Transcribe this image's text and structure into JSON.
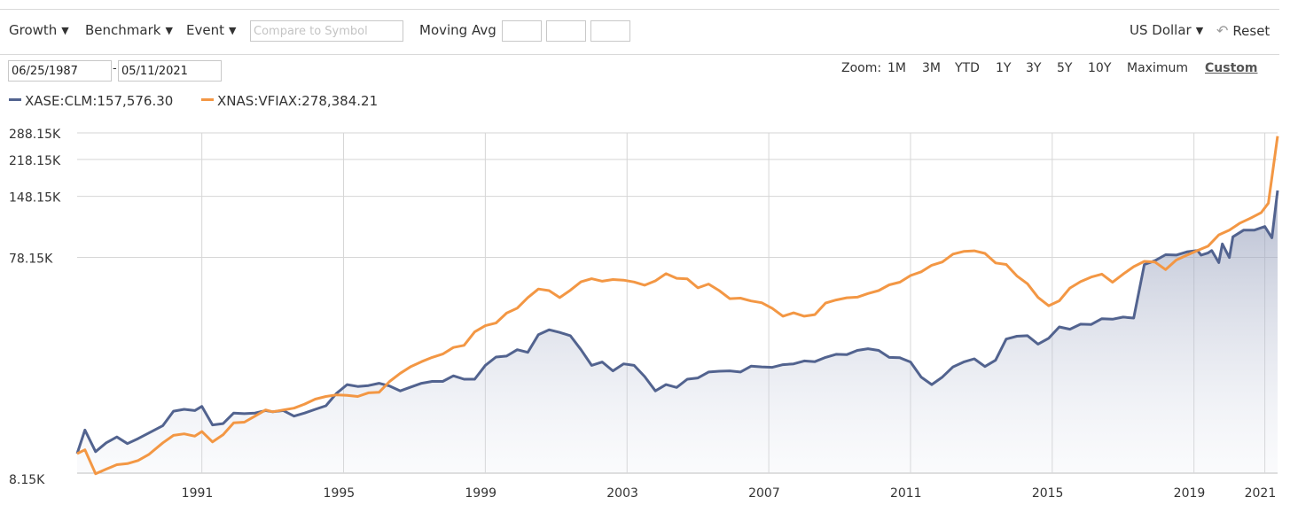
{
  "toolbar": {
    "growth_label": "Growth",
    "benchmark_label": "Benchmark",
    "event_label": "Event",
    "compare_placeholder": "Compare to Symbol",
    "moving_avg_label": "Moving Avg",
    "currency_label": "US Dollar",
    "reset_label": "Reset"
  },
  "date_range": {
    "start": "06/25/1987",
    "separator": "-",
    "end": "05/11/2021"
  },
  "zoom": {
    "label": "Zoom:",
    "options": [
      "1M",
      "3M",
      "YTD",
      "1Y",
      "3Y",
      "5Y",
      "10Y",
      "Maximum",
      "Custom"
    ],
    "active": "Custom"
  },
  "legend": [
    {
      "label": "XASE:CLM:157,576.30",
      "color": "#52638f"
    },
    {
      "label": "XNAS:VFIAX:278,384.21",
      "color": "#f39744"
    }
  ],
  "chart_data": {
    "type": "line",
    "y_scale": "log",
    "yticks": [
      8150,
      78150,
      148150,
      218150,
      288150
    ],
    "ytick_labels": [
      "8.15K",
      "78.15K",
      "148.15K",
      "218.15K",
      "288.15K"
    ],
    "xticks": [
      1991,
      1995,
      1999,
      2003,
      2007,
      2011,
      2015,
      2019,
      2021
    ],
    "xlim": [
      1987.48,
      2021.36
    ],
    "grid": true,
    "series": [
      {
        "name": "XASE:CLM",
        "color": "#52638f",
        "fill": true,
        "points": [
          [
            1987.48,
            10000
          ],
          [
            1987.7,
            12800
          ],
          [
            1988.0,
            10200
          ],
          [
            1988.3,
            11200
          ],
          [
            1988.6,
            11900
          ],
          [
            1988.9,
            11100
          ],
          [
            1989.2,
            11700
          ],
          [
            1989.5,
            12400
          ],
          [
            1989.9,
            13400
          ],
          [
            1990.2,
            15600
          ],
          [
            1990.5,
            15900
          ],
          [
            1990.8,
            15700
          ],
          [
            1991.0,
            16400
          ],
          [
            1991.3,
            13500
          ],
          [
            1991.6,
            13700
          ],
          [
            1991.9,
            15300
          ],
          [
            1992.2,
            15200
          ],
          [
            1992.5,
            15300
          ],
          [
            1992.8,
            15700
          ],
          [
            1993.0,
            15500
          ],
          [
            1993.3,
            15700
          ],
          [
            1993.6,
            14800
          ],
          [
            1993.9,
            15300
          ],
          [
            1994.2,
            15900
          ],
          [
            1994.5,
            16500
          ],
          [
            1994.8,
            18800
          ],
          [
            1995.1,
            20600
          ],
          [
            1995.4,
            20200
          ],
          [
            1995.7,
            20400
          ],
          [
            1996.0,
            20900
          ],
          [
            1996.3,
            20300
          ],
          [
            1996.6,
            19300
          ],
          [
            1996.9,
            20100
          ],
          [
            1997.2,
            20900
          ],
          [
            1997.5,
            21300
          ],
          [
            1997.8,
            21300
          ],
          [
            1998.1,
            22600
          ],
          [
            1998.4,
            21800
          ],
          [
            1998.7,
            21800
          ],
          [
            1999.0,
            25200
          ],
          [
            1999.3,
            27500
          ],
          [
            1999.6,
            27800
          ],
          [
            1999.9,
            29700
          ],
          [
            2000.2,
            28900
          ],
          [
            2000.5,
            34800
          ],
          [
            2000.8,
            36600
          ],
          [
            2001.1,
            35600
          ],
          [
            2001.4,
            34400
          ],
          [
            2001.7,
            29700
          ],
          [
            2002.0,
            25200
          ],
          [
            2002.3,
            26100
          ],
          [
            2002.6,
            23800
          ],
          [
            2002.9,
            25600
          ],
          [
            2003.2,
            25200
          ],
          [
            2003.5,
            22400
          ],
          [
            2003.8,
            19300
          ],
          [
            2004.1,
            20600
          ],
          [
            2004.4,
            20000
          ],
          [
            2004.7,
            21800
          ],
          [
            2005.0,
            22100
          ],
          [
            2005.3,
            23500
          ],
          [
            2005.6,
            23700
          ],
          [
            2005.9,
            23800
          ],
          [
            2006.2,
            23500
          ],
          [
            2006.5,
            25000
          ],
          [
            2006.8,
            24800
          ],
          [
            2007.1,
            24700
          ],
          [
            2007.4,
            25400
          ],
          [
            2007.7,
            25600
          ],
          [
            2008.0,
            26400
          ],
          [
            2008.3,
            26200
          ],
          [
            2008.6,
            27400
          ],
          [
            2008.9,
            28300
          ],
          [
            2009.2,
            28200
          ],
          [
            2009.5,
            29500
          ],
          [
            2009.8,
            30000
          ],
          [
            2010.1,
            29500
          ],
          [
            2010.4,
            27400
          ],
          [
            2010.7,
            27300
          ],
          [
            2011.0,
            26100
          ],
          [
            2011.3,
            22300
          ],
          [
            2011.6,
            20600
          ],
          [
            2011.9,
            22300
          ],
          [
            2012.2,
            24800
          ],
          [
            2012.5,
            26100
          ],
          [
            2012.8,
            27000
          ],
          [
            2013.1,
            24900
          ],
          [
            2013.4,
            26600
          ],
          [
            2013.7,
            33200
          ],
          [
            2014.0,
            34200
          ],
          [
            2014.3,
            34400
          ],
          [
            2014.6,
            31500
          ],
          [
            2014.9,
            33500
          ],
          [
            2015.2,
            37700
          ],
          [
            2015.5,
            36800
          ],
          [
            2015.8,
            38800
          ],
          [
            2016.1,
            38700
          ],
          [
            2016.4,
            41100
          ],
          [
            2016.7,
            40900
          ],
          [
            2017.0,
            41800
          ],
          [
            2017.3,
            41400
          ],
          [
            2017.6,
            72500
          ],
          [
            2017.9,
            75500
          ],
          [
            2018.2,
            80400
          ],
          [
            2018.5,
            80100
          ],
          [
            2018.8,
            82800
          ],
          [
            2019.1,
            84000
          ],
          [
            2019.4,
            82000
          ],
          [
            2019.7,
            74000
          ],
          [
            2020.0,
            78000
          ],
          [
            2019.2,
            80000
          ],
          [
            2019.5,
            84000
          ],
          [
            2019.8,
            90000
          ],
          [
            2020.1,
            97000
          ],
          [
            2020.4,
            104000
          ],
          [
            2020.7,
            104000
          ],
          [
            2021.0,
            108000
          ],
          [
            2021.2,
            96000
          ],
          [
            2021.36,
            157576
          ]
        ]
      },
      {
        "name": "XNAS:VFIAX",
        "color": "#f39744",
        "fill": false,
        "points": [
          [
            1987.48,
            10000
          ],
          [
            1987.7,
            10400
          ],
          [
            1988.0,
            8100
          ],
          [
            1988.3,
            8500
          ],
          [
            1988.6,
            8900
          ],
          [
            1988.9,
            9000
          ],
          [
            1989.2,
            9300
          ],
          [
            1989.5,
            9900
          ],
          [
            1989.9,
            11200
          ],
          [
            1990.2,
            12100
          ],
          [
            1990.5,
            12300
          ],
          [
            1990.8,
            12000
          ],
          [
            1991.0,
            12600
          ],
          [
            1991.3,
            11300
          ],
          [
            1991.6,
            12200
          ],
          [
            1991.9,
            13800
          ],
          [
            1992.2,
            13900
          ],
          [
            1992.5,
            14800
          ],
          [
            1992.8,
            15800
          ],
          [
            1993.0,
            15500
          ],
          [
            1993.3,
            15800
          ],
          [
            1993.6,
            16100
          ],
          [
            1993.9,
            16800
          ],
          [
            1994.2,
            17700
          ],
          [
            1994.5,
            18200
          ],
          [
            1994.8,
            18500
          ],
          [
            1995.1,
            18400
          ],
          [
            1995.4,
            18200
          ],
          [
            1995.7,
            18900
          ],
          [
            1996.0,
            19000
          ],
          [
            1996.3,
            21300
          ],
          [
            1996.6,
            23200
          ],
          [
            1996.9,
            24900
          ],
          [
            1997.2,
            26200
          ],
          [
            1997.5,
            27400
          ],
          [
            1997.8,
            28400
          ],
          [
            1998.1,
            30400
          ],
          [
            1998.4,
            31100
          ],
          [
            1998.7,
            35800
          ],
          [
            1999.0,
            38200
          ],
          [
            1999.3,
            39300
          ],
          [
            1999.6,
            43600
          ],
          [
            1999.9,
            45900
          ],
          [
            2000.2,
            51300
          ],
          [
            2000.5,
            56100
          ],
          [
            2000.8,
            55200
          ],
          [
            2001.1,
            51300
          ],
          [
            2001.4,
            55400
          ],
          [
            2001.7,
            60500
          ],
          [
            2002.0,
            62500
          ],
          [
            2002.3,
            60900
          ],
          [
            2002.6,
            62000
          ],
          [
            2002.9,
            61600
          ],
          [
            2003.2,
            60400
          ],
          [
            2003.5,
            58400
          ],
          [
            2003.8,
            61100
          ],
          [
            2004.1,
            65900
          ],
          [
            2004.4,
            62800
          ],
          [
            2004.7,
            62400
          ],
          [
            2005.0,
            56800
          ],
          [
            2005.3,
            59100
          ],
          [
            2005.6,
            55200
          ],
          [
            2005.9,
            50700
          ],
          [
            2006.2,
            51000
          ],
          [
            2006.5,
            49500
          ],
          [
            2006.8,
            48600
          ],
          [
            2007.1,
            45800
          ],
          [
            2007.4,
            42200
          ],
          [
            2007.7,
            43700
          ],
          [
            2008.0,
            42200
          ],
          [
            2008.3,
            42900
          ],
          [
            2008.6,
            48400
          ],
          [
            2008.9,
            50000
          ],
          [
            2009.2,
            51200
          ],
          [
            2009.5,
            51500
          ],
          [
            2009.8,
            53500
          ],
          [
            2010.1,
            55200
          ],
          [
            2010.4,
            58600
          ],
          [
            2010.7,
            60300
          ],
          [
            2011.0,
            64600
          ],
          [
            2011.3,
            67200
          ],
          [
            2011.6,
            72000
          ],
          [
            2011.9,
            74500
          ],
          [
            2012.2,
            80900
          ],
          [
            2012.5,
            83200
          ],
          [
            2012.8,
            83700
          ],
          [
            2013.1,
            81500
          ],
          [
            2013.4,
            73700
          ],
          [
            2013.7,
            72600
          ],
          [
            2014.0,
            64400
          ],
          [
            2014.3,
            59300
          ],
          [
            2014.6,
            51400
          ],
          [
            2014.9,
            47100
          ],
          [
            2015.2,
            49600
          ],
          [
            2015.5,
            56700
          ],
          [
            2015.8,
            60600
          ],
          [
            2016.1,
            63600
          ],
          [
            2016.4,
            65600
          ],
          [
            2016.7,
            60200
          ],
          [
            2017.0,
            65600
          ],
          [
            2017.3,
            70900
          ],
          [
            2017.6,
            75000
          ],
          [
            2017.9,
            74400
          ],
          [
            2018.2,
            68800
          ],
          [
            2018.5,
            76000
          ],
          [
            2018.8,
            80000
          ],
          [
            2019.1,
            84000
          ],
          [
            2019.4,
            88000
          ],
          [
            2019.7,
            99000
          ],
          [
            2020.0,
            104000
          ],
          [
            2020.3,
            112000
          ],
          [
            2020.6,
            118000
          ],
          [
            2020.9,
            125000
          ],
          [
            2021.1,
            138000
          ],
          [
            2021.36,
            278384
          ]
        ]
      }
    ]
  }
}
